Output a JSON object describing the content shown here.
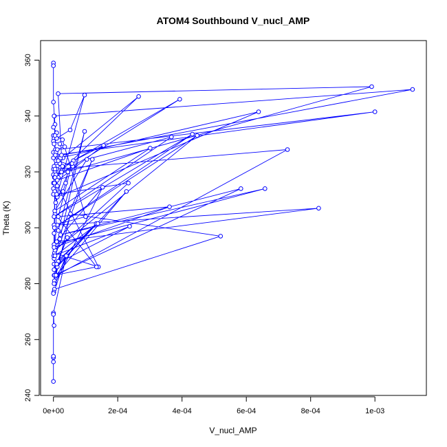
{
  "chart_data": {
    "type": "scatter",
    "title": "ATOM4 Southbound V_nucl_AMP",
    "xlabel": "V_nucl_AMP",
    "ylabel": "Theta (K)",
    "xlim": [
      -4e-05,
      0.00116
    ],
    "ylim": [
      240,
      367
    ],
    "x_ticks": [
      0,
      0.0002,
      0.0004,
      0.0006,
      0.0008,
      0.001
    ],
    "x_tick_labels": [
      "0e+00",
      "2e-04",
      "4e-04",
      "6e-04",
      "8e-04",
      "1e-03"
    ],
    "y_ticks": [
      240,
      260,
      280,
      300,
      320,
      340,
      360
    ],
    "y_tick_labels": [
      "240",
      "260",
      "280",
      "300",
      "320",
      "340",
      "360"
    ],
    "grid": false,
    "legend": "none",
    "series": [
      {
        "color": "#0000ff",
        "marker": "open-circle",
        "connected": true,
        "x": [
          0,
          0,
          0,
          3e-06,
          5e-06,
          0,
          1e-05,
          0,
          2e-06,
          0,
          2e-05,
          3.5e-05,
          6e-06,
          0,
          1e-05,
          0,
          8e-06,
          2e-05,
          1.2e-05,
          0,
          5e-06,
          0,
          1.5e-05,
          8e-06,
          0,
          7e-06,
          0,
          4e-06,
          0,
          1e-05,
          9.7e-05,
          5.2e-05,
          1e-05,
          2e-06,
          8e-06,
          1.5e-05,
          6e-05,
          2.5e-05,
          3e-06,
          0.000265,
          3e-05,
          1e-05,
          3e-06,
          0.000156,
          2.8e-05,
          5e-06,
          0.000393,
          6.2e-05,
          4.5e-05,
          3.8e-05,
          3e-05,
          1.2e-05,
          0.000638,
          2.2e-05,
          8e-06,
          0.00099,
          1.45e-05,
          2.5e-05,
          0.001117,
          2e-06,
          6e-06,
          0.001,
          1.2e-05,
          2e-06,
          5e-06,
          1.2e-05,
          0.00014,
          3e-06,
          1e-05,
          0.000825,
          1.2e-05,
          1.5e-05,
          9.7e-05,
          2e-05,
          2e-06,
          1e-05,
          0.000728,
          5e-06,
          1e-06,
          0.000237,
          8e-06,
          0.000133,
          2e-06,
          4.3e-05,
          1.5e-05,
          3e-06,
          5e-06,
          2.8e-05,
          0.0001,
          2e-06,
          2e-06,
          5e-06,
          0.000134,
          2e-06,
          5e-06,
          0.000153,
          2e-06,
          0.000658,
          2.2e-05,
          0.000583,
          3e-06,
          1.2e-05,
          0.000301,
          4e-06,
          0.000104,
          0.000367,
          2e-06,
          0.000432,
          3e-06,
          0.000447,
          5e-06,
          0.000233,
          1e-05,
          7e-06,
          5.8e-05,
          1.5e-05,
          0.000361,
          2e-06,
          0.000121,
          5e-06,
          0.000138,
          2e-06,
          1.2e-05,
          0.000227,
          8e-06,
          5.3e-05,
          0.00052,
          3e-06,
          1e-06,
          0,
          4e-05,
          1e-05,
          2e-06,
          4e-05,
          0,
          2e-06,
          0,
          0,
          0,
          0,
          0
        ],
        "y": [
          359,
          358,
          345,
          340,
          337,
          336,
          334,
          333,
          332,
          331,
          330,
          329,
          328,
          327,
          326,
          325,
          324,
          323,
          322,
          321,
          320,
          319,
          318,
          317,
          316,
          315,
          314,
          313,
          312,
          311,
          347.5,
          335,
          332,
          330,
          327,
          324,
          322,
          320,
          318,
          347,
          325,
          321,
          316,
          329.5,
          322,
          318,
          346,
          324,
          320,
          316,
          313,
          311,
          341.5,
          325,
          319,
          350.5,
          348,
          326,
          349.5,
          340,
          326,
          341.5,
          328,
          322,
          318,
          315,
          286,
          291,
          295,
          307,
          301,
          299,
          334.5,
          296,
          289,
          283,
          328,
          321,
          290,
          300.5,
          287,
          301.5,
          285,
          296.5,
          288,
          281,
          333,
          331.5,
          304,
          301,
          298,
          305,
          286,
          283,
          280,
          314.5,
          294,
          314,
          297.5,
          314,
          283,
          317,
          328.5,
          306,
          324.5,
          332.5,
          304,
          333.5,
          300,
          333,
          292,
          316,
          312,
          309,
          323,
          304,
          307.5,
          293,
          324.5,
          290,
          301.5,
          287,
          286,
          313,
          283,
          305,
          297,
          278,
          277,
          276.5,
          290,
          287,
          280,
          290,
          269.5,
          265,
          269,
          253.5,
          254,
          245,
          252
        ]
      }
    ]
  }
}
